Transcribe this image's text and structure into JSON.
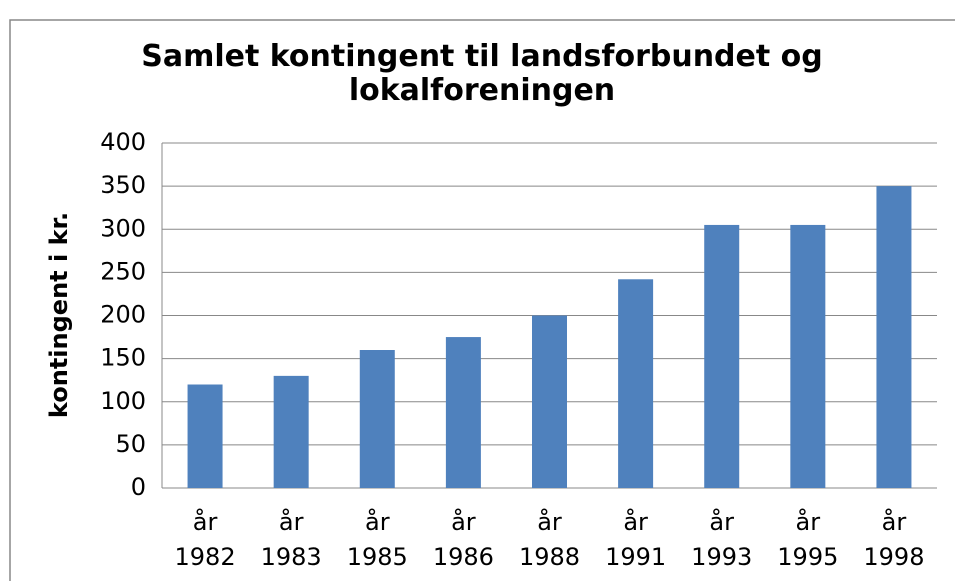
{
  "chart_data": {
    "type": "bar",
    "title": "Samlet kontingent til landsforbundet og lokalforeningen",
    "y_label": "kontingent i kr.",
    "categories": [
      "år 1982",
      "år 1983",
      "år 1985",
      "år 1986",
      "år 1988",
      "år 1991",
      "år 1993",
      "år 1995",
      "år 1998"
    ],
    "values": [
      120,
      130,
      160,
      175,
      200,
      242,
      305,
      305,
      350
    ],
    "color": "#4f81bd",
    "ylim": [
      0,
      400
    ],
    "yticks": [
      0,
      50,
      100,
      150,
      200,
      250,
      300,
      350,
      400
    ],
    "grid": true
  }
}
